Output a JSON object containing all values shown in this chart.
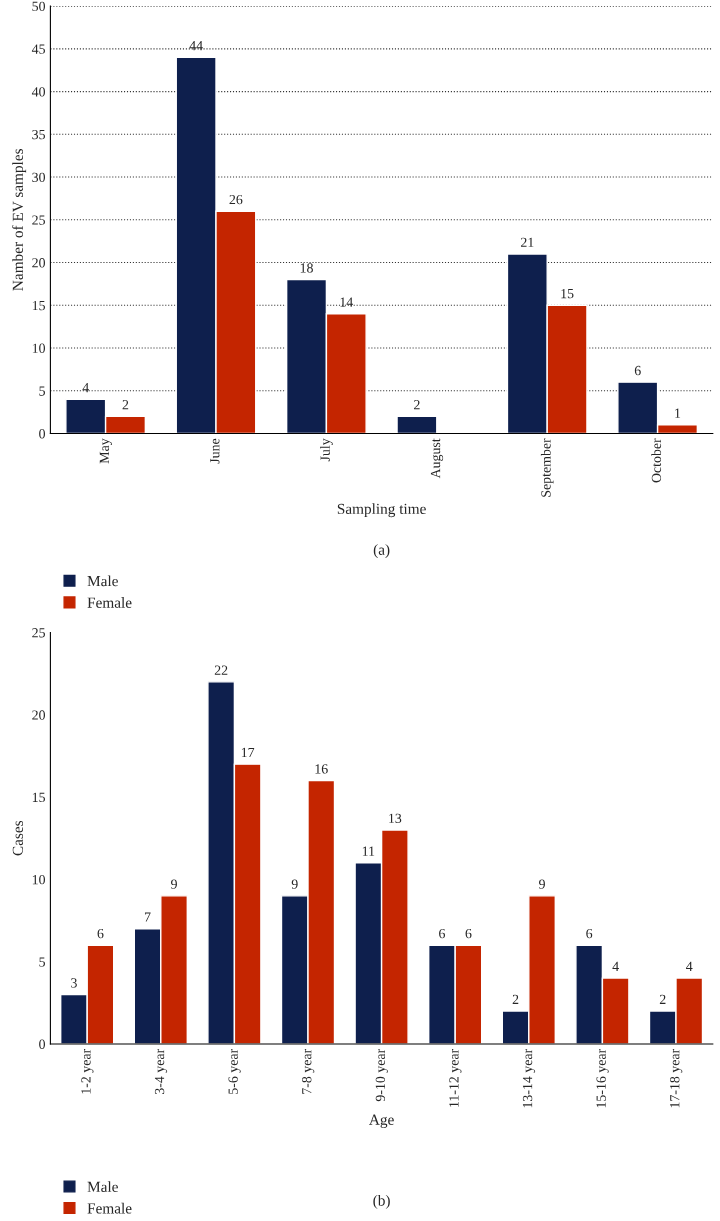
{
  "chart_data": [
    {
      "type": "bar",
      "xlabel": "Sampling time",
      "ylabel": "Namber of EV samples",
      "categories": [
        "May",
        "June",
        "July",
        "August",
        "September",
        "October"
      ],
      "series": [
        {
          "name": "Male",
          "color": "#0e1f4d",
          "values": [
            4,
            44,
            18,
            2,
            21,
            6
          ]
        },
        {
          "name": "Female",
          "color": "#c42500",
          "values": [
            2,
            26,
            14,
            null,
            15,
            1
          ]
        }
      ],
      "ylim": [
        0,
        50
      ],
      "yticks": [
        0,
        5,
        10,
        15,
        20,
        25,
        30,
        35,
        40,
        45,
        50
      ],
      "grid": "y",
      "line_style": "dotted",
      "legend": "bottom left",
      "data_labels": true,
      "annotations": [
        "(a)"
      ]
    },
    {
      "type": "bar",
      "xlabel": "Age",
      "ylabel": "Cases",
      "categories": [
        "1-2 year",
        "3-4 year",
        "5-6 year",
        "7-8 year",
        "9-10 year",
        "11-12 year",
        "13-14 year",
        "15-16 year",
        "17-18 year"
      ],
      "series": [
        {
          "name": "Male",
          "color": "#0e1f4d",
          "values": [
            3,
            7,
            22,
            9,
            11,
            6,
            2,
            6,
            2
          ]
        },
        {
          "name": "Female",
          "color": "#c42500",
          "values": [
            6,
            9,
            17,
            16,
            13,
            6,
            9,
            4,
            4
          ]
        }
      ],
      "ylim": [
        0,
        25
      ],
      "yticks": [
        0,
        5,
        10,
        15,
        20,
        25
      ],
      "legend": "bottom left",
      "data_labels": true,
      "annotations": [
        "(b)"
      ]
    }
  ]
}
